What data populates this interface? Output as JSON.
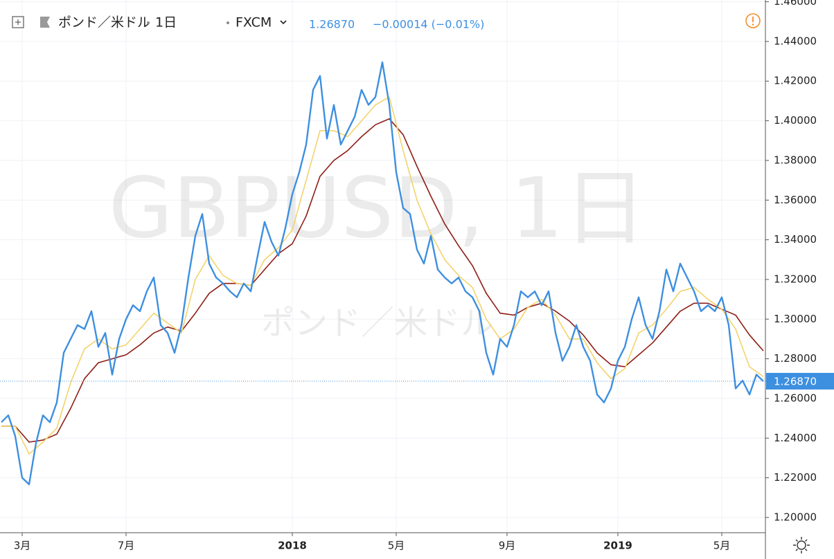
{
  "chart_data": {
    "type": "line",
    "title": "ポンド／米ドル",
    "interval": "1日",
    "source": "FXCM",
    "last_price_label": "1.26870",
    "change_label": "−0.00014 (−0.01%)",
    "watermark": "GBPUSD, 1日",
    "watermark_sub": "ポンド／米ドル",
    "categories": [
      null,
      null,
      null,
      "3月",
      null,
      null,
      null,
      null,
      null,
      null,
      null,
      null,
      null,
      null,
      null,
      null,
      null,
      null,
      "7月",
      null,
      null,
      null,
      null,
      null,
      null,
      null,
      null,
      null,
      null,
      null,
      null,
      null,
      null,
      null,
      null,
      null,
      null,
      null,
      null,
      null,
      null,
      null,
      "2018",
      null,
      null,
      null,
      null,
      null,
      null,
      null,
      null,
      null,
      null,
      null,
      null,
      null,
      null,
      "5月",
      null,
      null,
      null,
      null,
      null,
      null,
      null,
      null,
      null,
      null,
      null,
      null,
      null,
      null,
      null,
      "9月",
      null,
      null,
      null,
      null,
      null,
      null,
      null,
      null,
      null,
      null,
      null,
      null,
      null,
      null,
      null,
      "2019",
      null,
      null,
      null,
      null,
      null,
      null,
      null,
      null,
      null,
      null,
      null,
      null,
      null,
      null,
      "5月",
      null,
      null,
      null,
      null,
      null,
      null
    ],
    "series": [
      {
        "color": "#3d8fe0",
        "width": 2.4,
        "values": [
          1.248,
          1.2515,
          1.241,
          1.22,
          1.2167,
          1.2375,
          1.2515,
          1.248,
          1.258,
          1.283,
          1.29,
          1.297,
          1.295,
          1.304,
          1.286,
          1.293,
          1.272,
          1.29,
          1.3,
          1.307,
          1.304,
          1.314,
          1.321,
          1.297,
          1.293,
          1.283,
          1.297,
          1.321,
          1.342,
          1.353,
          1.328,
          1.321,
          1.318,
          1.314,
          1.311,
          1.318,
          1.314,
          1.332,
          1.349,
          1.339,
          1.332,
          1.346,
          1.363,
          1.374,
          1.388,
          1.4156,
          1.4226,
          1.391,
          1.408,
          1.388,
          1.395,
          1.402,
          1.4156,
          1.408,
          1.412,
          1.4295,
          1.408,
          1.374,
          1.356,
          1.353,
          1.335,
          1.328,
          1.342,
          1.325,
          1.321,
          1.318,
          1.321,
          1.314,
          1.311,
          1.304,
          1.283,
          1.272,
          1.29,
          1.286,
          1.297,
          1.314,
          1.311,
          1.314,
          1.307,
          1.314,
          1.293,
          1.279,
          1.286,
          1.297,
          1.286,
          1.279,
          1.262,
          1.258,
          1.265,
          1.279,
          1.286,
          1.3,
          1.311,
          1.297,
          1.29,
          1.304,
          1.325,
          1.314,
          1.328,
          1.321,
          1.314,
          1.304,
          1.307,
          1.304,
          1.311,
          1.297,
          1.265,
          1.269,
          1.262,
          1.272,
          1.2687
        ]
      },
      {
        "color": "#f3d36b",
        "width": 1.6,
        "values": [
          1.246,
          1.246,
          1.246,
          1.239,
          1.232,
          1.235,
          1.238,
          1.2415,
          1.245,
          1.2565,
          1.268,
          1.2765,
          1.285,
          1.2875,
          1.29,
          1.2875,
          1.285,
          1.286,
          1.287,
          1.291,
          1.295,
          1.299,
          1.303,
          1.3005,
          1.298,
          1.2955,
          1.293,
          1.3065,
          1.32,
          1.326,
          1.332,
          1.327,
          1.322,
          1.32,
          1.318,
          1.3175,
          1.317,
          1.3235,
          1.33,
          1.333,
          1.336,
          1.3405,
          1.345,
          1.3575,
          1.37,
          1.3825,
          1.395,
          1.395,
          1.395,
          1.3935,
          1.392,
          1.396,
          1.4,
          1.404,
          1.408,
          1.41,
          1.412,
          1.3985,
          1.385,
          1.3725,
          1.36,
          1.3515,
          1.343,
          1.3365,
          1.33,
          1.326,
          1.322,
          1.319,
          1.316,
          1.308,
          1.3,
          1.295,
          1.29,
          1.2925,
          1.295,
          1.3005,
          1.306,
          1.308,
          1.31,
          1.306,
          1.302,
          1.296,
          1.29,
          1.29,
          1.29,
          1.284,
          1.278,
          1.274,
          1.27,
          1.2725,
          1.275,
          1.284,
          1.293,
          1.295,
          1.297,
          1.301,
          1.305,
          1.3095,
          1.314,
          1.315,
          1.316,
          1.313,
          1.31,
          1.3075,
          1.305,
          1.3,
          1.295,
          1.2855,
          1.276,
          1.2735,
          1.271
        ]
      },
      {
        "color": "#8e1d15",
        "width": 1.6,
        "values": [
          1.246,
          1.246,
          1.246,
          1.242,
          1.238,
          1.2385,
          1.239,
          1.2405,
          1.242,
          1.2485,
          1.255,
          1.2625,
          1.27,
          1.274,
          1.278,
          1.279,
          1.28,
          1.281,
          1.282,
          1.2845,
          1.287,
          1.29,
          1.293,
          1.2945,
          1.296,
          1.295,
          1.294,
          1.2985,
          1.303,
          1.308,
          1.313,
          1.3155,
          1.318,
          1.318,
          1.318,
          1.3175,
          1.317,
          1.321,
          1.325,
          1.329,
          1.333,
          1.3355,
          1.338,
          1.345,
          1.352,
          1.362,
          1.372,
          1.376,
          1.38,
          1.3825,
          1.385,
          1.3885,
          1.392,
          1.395,
          1.398,
          1.3995,
          1.401,
          1.397,
          1.393,
          1.385,
          1.377,
          1.3695,
          1.362,
          1.355,
          1.348,
          1.3425,
          1.337,
          1.332,
          1.327,
          1.32,
          1.313,
          1.308,
          1.303,
          1.3025,
          1.302,
          1.304,
          1.306,
          1.307,
          1.308,
          1.306,
          1.304,
          1.3015,
          1.299,
          1.2955,
          1.292,
          1.2875,
          1.283,
          1.28,
          1.277,
          1.2765,
          1.276,
          1.279,
          1.282,
          1.285,
          1.288,
          1.292,
          1.296,
          1.3,
          1.304,
          1.306,
          1.308,
          1.308,
          1.308,
          1.3065,
          1.305,
          1.3035,
          1.302,
          1.297,
          1.292,
          1.288,
          1.284
        ]
      }
    ],
    "ylim": [
      1.1923,
      1.4609
    ],
    "yticks": [
      {
        "value": 1.2,
        "label": "1.20000"
      },
      {
        "value": 1.22,
        "label": "1.22000"
      },
      {
        "value": 1.24,
        "label": "1.24000"
      },
      {
        "value": 1.26,
        "label": "1.26000"
      },
      {
        "value": 1.28,
        "label": "1.28000"
      },
      {
        "value": 1.3,
        "label": "1.30000"
      },
      {
        "value": 1.32,
        "label": "1.32000"
      },
      {
        "value": 1.34,
        "label": "1.34000"
      },
      {
        "value": 1.36,
        "label": "1.36000"
      },
      {
        "value": 1.38,
        "label": "1.38000"
      },
      {
        "value": 1.4,
        "label": "1.40000"
      },
      {
        "value": 1.42,
        "label": "1.42000"
      },
      {
        "value": 1.44,
        "label": "1.44000"
      },
      {
        "value": 1.46,
        "label": "1.46000"
      }
    ],
    "grid": true
  }
}
